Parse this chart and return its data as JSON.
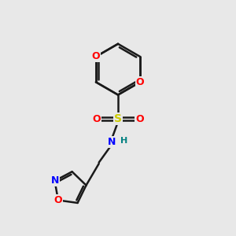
{
  "background_color": "#e8e8e8",
  "bond_color": "#1a1a1a",
  "atom_colors": {
    "O": "#ff0000",
    "S": "#cccc00",
    "N": "#0000ff",
    "H": "#008080",
    "C": "#1a1a1a"
  },
  "figsize": [
    3.0,
    3.0
  ],
  "dpi": 100
}
